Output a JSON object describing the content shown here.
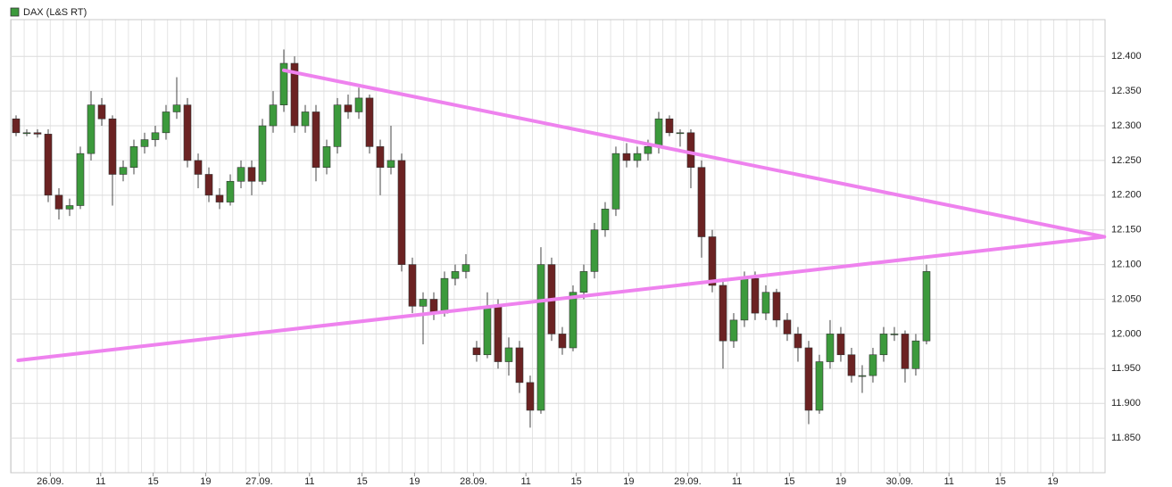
{
  "chart_data": {
    "type": "candlestick",
    "series": [
      {
        "name": "DAX (L&S RT)",
        "color": "#3c9a3c",
        "down_color": "#6b2222",
        "x": [
          0,
          1,
          2,
          3,
          4,
          5,
          6,
          7,
          8,
          9,
          10,
          11,
          12,
          13,
          14,
          15,
          16,
          17,
          18,
          19,
          20,
          21,
          22,
          23,
          24,
          25,
          26,
          27,
          28,
          29,
          30,
          31,
          32,
          33,
          34,
          35,
          36,
          37,
          38,
          39,
          40,
          41,
          42,
          43,
          44,
          45,
          46,
          47,
          48,
          49,
          50,
          51,
          52,
          53,
          54,
          55,
          56,
          57,
          58,
          59,
          60,
          61,
          62,
          63,
          64,
          65,
          66,
          67,
          68,
          69,
          70,
          71,
          72,
          73,
          74,
          75,
          76,
          77,
          78,
          79,
          80,
          81,
          82,
          83,
          84,
          85
        ],
        "ohlc": [
          [
            12310,
            12315,
            12285,
            12290
          ],
          [
            12290,
            12295,
            12285,
            12290
          ],
          [
            12290,
            12295,
            12283,
            12288
          ],
          [
            12288,
            12295,
            12190,
            12200
          ],
          [
            12200,
            12210,
            12165,
            12180
          ],
          [
            12180,
            12195,
            12170,
            12185
          ],
          [
            12185,
            12270,
            12180,
            12260
          ],
          [
            12260,
            12350,
            12250,
            12330
          ],
          [
            12330,
            12340,
            12300,
            12310
          ],
          [
            12310,
            12315,
            12185,
            12230
          ],
          [
            12230,
            12250,
            12220,
            12240
          ],
          [
            12240,
            12280,
            12230,
            12270
          ],
          [
            12270,
            12290,
            12260,
            12280
          ],
          [
            12280,
            12300,
            12270,
            12290
          ],
          [
            12290,
            12330,
            12280,
            12320
          ],
          [
            12320,
            12370,
            12310,
            12330
          ],
          [
            12330,
            12340,
            12240,
            12250
          ],
          [
            12250,
            12260,
            12210,
            12230
          ],
          [
            12230,
            12240,
            12190,
            12200
          ],
          [
            12200,
            12210,
            12180,
            12190
          ],
          [
            12190,
            12230,
            12185,
            12220
          ],
          [
            12220,
            12250,
            12210,
            12240
          ],
          [
            12240,
            12250,
            12200,
            12220
          ],
          [
            12220,
            12310,
            12215,
            12300
          ],
          [
            12300,
            12350,
            12290,
            12330
          ],
          [
            12330,
            12410,
            12320,
            12390
          ],
          [
            12390,
            12400,
            12290,
            12300
          ],
          [
            12300,
            12330,
            12290,
            12320
          ],
          [
            12320,
            12330,
            12220,
            12240
          ],
          [
            12240,
            12280,
            12230,
            12270
          ],
          [
            12270,
            12340,
            12260,
            12330
          ],
          [
            12330,
            12345,
            12310,
            12320
          ],
          [
            12320,
            12355,
            12310,
            12340
          ],
          [
            12340,
            12345,
            12260,
            12270
          ],
          [
            12270,
            12280,
            12200,
            12240
          ],
          [
            12240,
            12300,
            12230,
            12250
          ],
          [
            12250,
            12260,
            12090,
            12100
          ],
          [
            12100,
            12110,
            12030,
            12040
          ],
          [
            12040,
            12060,
            11985,
            12050
          ],
          [
            12050,
            12060,
            12020,
            12030
          ],
          [
            12030,
            12090,
            12025,
            12080
          ],
          [
            12080,
            12100,
            12070,
            12090
          ],
          [
            12090,
            12115,
            12080,
            12100
          ],
          [
            11980,
            11990,
            11960,
            11970
          ],
          [
            11970,
            12060,
            11965,
            12040
          ],
          [
            12040,
            12050,
            11950,
            11960
          ],
          [
            11960,
            11995,
            11940,
            11980
          ],
          [
            11980,
            11990,
            11915,
            11930
          ],
          [
            11930,
            11940,
            11865,
            11890
          ],
          [
            11890,
            12125,
            11885,
            12100
          ],
          [
            12100,
            12110,
            11990,
            12000
          ],
          [
            12000,
            12010,
            11970,
            11980
          ],
          [
            11980,
            12070,
            11975,
            12060
          ],
          [
            12060,
            12100,
            12050,
            12090
          ],
          [
            12090,
            12160,
            12080,
            12150
          ],
          [
            12150,
            12190,
            12140,
            12180
          ],
          [
            12180,
            12270,
            12170,
            12260
          ],
          [
            12260,
            12275,
            12240,
            12250
          ],
          [
            12250,
            12270,
            12240,
            12260
          ],
          [
            12260,
            12280,
            12250,
            12270
          ],
          [
            12270,
            12320,
            12260,
            12310
          ],
          [
            12310,
            12315,
            12285,
            12290
          ],
          [
            12290,
            12295,
            12270,
            12290
          ],
          [
            12290,
            12295,
            12210,
            12240
          ],
          [
            12240,
            12250,
            12110,
            12140
          ],
          [
            12140,
            12150,
            12060,
            12070
          ],
          [
            12070,
            12080,
            11950,
            11990
          ],
          [
            11990,
            12030,
            11980,
            12020
          ],
          [
            12020,
            12090,
            12010,
            12080
          ],
          [
            12080,
            12090,
            12020,
            12030
          ],
          [
            12030,
            12070,
            12020,
            12060
          ],
          [
            12060,
            12065,
            12010,
            12020
          ],
          [
            12020,
            12030,
            11990,
            12000
          ],
          [
            12000,
            12010,
            11960,
            11980
          ],
          [
            11980,
            11990,
            11870,
            11890
          ],
          [
            11890,
            11970,
            11885,
            11960
          ],
          [
            11960,
            12020,
            11950,
            12000
          ],
          [
            12000,
            12010,
            11960,
            11970
          ],
          [
            11970,
            11980,
            11930,
            11940
          ],
          [
            11940,
            11955,
            11915,
            11940
          ],
          [
            11940,
            11980,
            11930,
            11970
          ],
          [
            11970,
            12010,
            11960,
            12000
          ],
          [
            12000,
            12010,
            11990,
            12000
          ],
          [
            12000,
            12005,
            11930,
            11950
          ],
          [
            11950,
            12000,
            11940,
            11990
          ],
          [
            11990,
            12100,
            11985,
            12090
          ]
        ]
      }
    ],
    "trendlines": [
      {
        "color": "#ee82ee",
        "x": [
          25,
          101.6
        ],
        "y": [
          12380,
          12140
        ]
      },
      {
        "color": "#ee82ee",
        "x": [
          0.2,
          101.6
        ],
        "y": [
          11962,
          12140
        ]
      }
    ],
    "xlim": [
      -0.5,
      101.67
    ],
    "ylim": [
      11800,
      12453
    ],
    "xticks": [
      {
        "value": 3.2,
        "label": "26.09."
      },
      {
        "value": 7.9,
        "label": "11"
      },
      {
        "value": 12.8,
        "label": "15"
      },
      {
        "value": 17.7,
        "label": "19"
      },
      {
        "value": 22.7,
        "label": "27.09."
      },
      {
        "value": 27.4,
        "label": "11"
      },
      {
        "value": 32.3,
        "label": "15"
      },
      {
        "value": 37.2,
        "label": "19"
      },
      {
        "value": 42.7,
        "label": "28.09."
      },
      {
        "value": 47.6,
        "label": "11"
      },
      {
        "value": 52.3,
        "label": "15"
      },
      {
        "value": 57.2,
        "label": "19"
      },
      {
        "value": 62.7,
        "label": "29.09."
      },
      {
        "value": 67.3,
        "label": "11"
      },
      {
        "value": 72.2,
        "label": "15"
      },
      {
        "value": 77,
        "label": "19"
      },
      {
        "value": 82.5,
        "label": "30.09."
      },
      {
        "value": 87.1,
        "label": "11"
      },
      {
        "value": 91.9,
        "label": "15"
      },
      {
        "value": 96.8,
        "label": "19"
      }
    ],
    "yticks": [
      {
        "value": 11850,
        "label": "11.850"
      },
      {
        "value": 11900,
        "label": "11.900"
      },
      {
        "value": 11950,
        "label": "11.950"
      },
      {
        "value": 12000,
        "label": "12.000"
      },
      {
        "value": 12050,
        "label": "12.050"
      },
      {
        "value": 12100,
        "label": "12.100"
      },
      {
        "value": 12150,
        "label": "12.150"
      },
      {
        "value": 12200,
        "label": "12.200"
      },
      {
        "value": 12250,
        "label": "12.250"
      },
      {
        "value": 12300,
        "label": "12.300"
      },
      {
        "value": 12350,
        "label": "12.350"
      },
      {
        "value": 12400,
        "label": "12.400"
      }
    ],
    "grid": true
  }
}
